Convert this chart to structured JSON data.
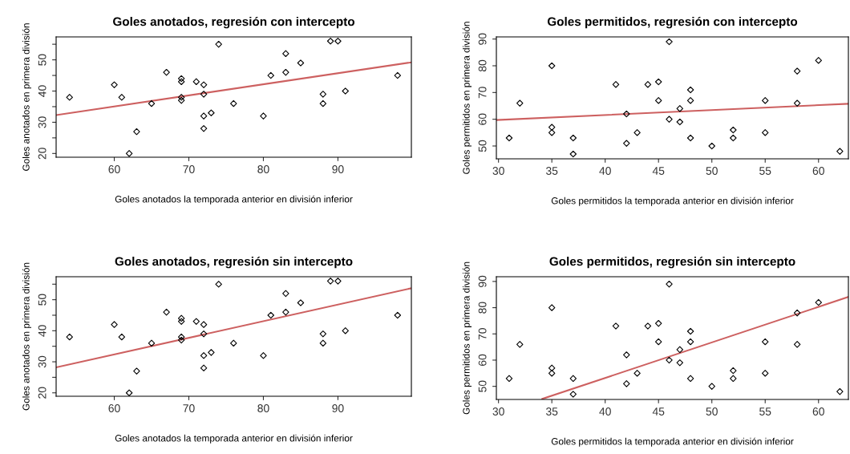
{
  "chart_data": [
    {
      "type": "scatter",
      "title": "Goles anotados, regresión con intercepto",
      "xlabel": "Goles anotados la temporada anterior en división inferior",
      "ylabel": "Goles anotados en primera división",
      "xlim": [
        52.2,
        99.85
      ],
      "ylim": [
        18.8,
        57.35
      ],
      "xticks": [
        60,
        70,
        80,
        90
      ],
      "yticks": [
        20,
        {
          "value": 25,
          "label": null
        },
        30,
        {
          "value": 35,
          "label": null
        },
        40,
        {
          "value": 45,
          "label": null
        },
        50,
        {
          "value": 55,
          "label": null
        }
      ],
      "grid": false,
      "series": [
        {
          "color": "#000000",
          "marker": "diamond",
          "x": [
            54,
            60,
            61,
            62,
            63,
            65,
            67,
            69,
            69,
            69,
            69,
            71,
            72,
            72,
            72,
            72,
            73,
            74,
            76,
            80,
            81,
            83,
            83,
            85,
            88,
            88,
            89,
            90,
            91,
            98
          ],
          "values": [
            38,
            42,
            38,
            20,
            27,
            36,
            46,
            44,
            43,
            38,
            37,
            43,
            42,
            39,
            32,
            28,
            33,
            55,
            36,
            32,
            45,
            52,
            46,
            49,
            39,
            36,
            56,
            56,
            40,
            45
          ]
        },
        {
          "type": "line",
          "color": "#cd6060",
          "x": [
            52.2,
            99.85
          ],
          "values": [
            32.3,
            49.2
          ]
        }
      ]
    },
    {
      "type": "scatter",
      "title": "Goles permitidos, regresión con intercepto",
      "xlabel": "Goles permitidos la temporada anterior en división inferior",
      "ylabel": "Goles permitidos en primera división",
      "xlim": [
        29.8,
        62.8
      ],
      "ylim": [
        45.2,
        90.8
      ],
      "xticks": [
        30,
        35,
        40,
        45,
        50,
        55,
        60
      ],
      "yticks": [
        50,
        60,
        70,
        80,
        90
      ],
      "grid": false,
      "series": [
        {
          "color": "#000000",
          "marker": "diamond",
          "x": [
            31,
            32,
            35,
            35,
            35,
            37,
            37,
            41,
            42,
            42,
            43,
            44,
            45,
            45,
            46,
            46,
            47,
            47,
            48,
            48,
            48,
            50,
            52,
            52,
            55,
            55,
            58,
            58,
            60,
            62
          ],
          "values": [
            53,
            66,
            80,
            57,
            55,
            53,
            47,
            73,
            62,
            51,
            55,
            73,
            74,
            67,
            89,
            60,
            64,
            59,
            71,
            67,
            53,
            50,
            56,
            53,
            67,
            55,
            78,
            66,
            82,
            48
          ]
        },
        {
          "type": "line",
          "color": "#cd6060",
          "x": [
            29.8,
            62.8
          ],
          "values": [
            59.7,
            65.8
          ]
        }
      ]
    },
    {
      "type": "scatter",
      "title": "Goles anotados, regresión sin intercepto",
      "xlabel": "Goles anotados la temporada anterior en división inferior",
      "ylabel": "Goles anotados en primera división",
      "xlim": [
        52.2,
        99.85
      ],
      "ylim": [
        18.9,
        57.4
      ],
      "xticks": [
        60,
        70,
        80,
        90
      ],
      "yticks": [
        20,
        {
          "value": 25,
          "label": null
        },
        30,
        {
          "value": 35,
          "label": null
        },
        40,
        {
          "value": 45,
          "label": null
        },
        50,
        {
          "value": 55,
          "label": null
        }
      ],
      "grid": false,
      "series": [
        {
          "color": "#000000",
          "marker": "diamond",
          "x": [
            54,
            60,
            61,
            62,
            63,
            65,
            67,
            69,
            69,
            69,
            69,
            71,
            72,
            72,
            72,
            72,
            73,
            74,
            76,
            80,
            81,
            83,
            83,
            85,
            88,
            88,
            89,
            90,
            91,
            98
          ],
          "values": [
            38,
            42,
            38,
            20,
            27,
            36,
            46,
            44,
            43,
            38,
            37,
            43,
            42,
            39,
            32,
            28,
            33,
            55,
            36,
            32,
            45,
            52,
            46,
            49,
            39,
            36,
            56,
            56,
            40,
            45
          ]
        },
        {
          "type": "line",
          "color": "#cd6060",
          "x": [
            52.2,
            99.85
          ],
          "values": [
            28.2,
            53.7
          ]
        }
      ]
    },
    {
      "type": "scatter",
      "title": "Goles permitidos, regresión sin intercepto",
      "xlabel": "Goles permitidos la temporada anterior en división inferior",
      "ylabel": "Goles permitidos en primera división",
      "xlim": [
        29.8,
        62.8
      ],
      "ylim": [
        45.0,
        91.8
      ],
      "xticks": [
        30,
        35,
        40,
        45,
        50,
        55,
        60
      ],
      "yticks": [
        50,
        60,
        70,
        80,
        90
      ],
      "grid": false,
      "series": [
        {
          "color": "#000000",
          "marker": "diamond",
          "x": [
            31,
            32,
            35,
            35,
            35,
            37,
            37,
            41,
            42,
            42,
            43,
            44,
            45,
            45,
            46,
            46,
            47,
            47,
            48,
            48,
            48,
            50,
            52,
            52,
            55,
            55,
            58,
            58,
            60,
            62
          ],
          "values": [
            53,
            66,
            80,
            57,
            55,
            53,
            47,
            73,
            62,
            51,
            55,
            73,
            74,
            67,
            89,
            60,
            64,
            59,
            71,
            67,
            53,
            50,
            56,
            53,
            67,
            55,
            78,
            66,
            82,
            48
          ]
        },
        {
          "type": "line",
          "color": "#cd6060",
          "x": [
            34.1,
            62.8
          ],
          "values": [
            45.2,
            84.1
          ]
        }
      ]
    }
  ]
}
